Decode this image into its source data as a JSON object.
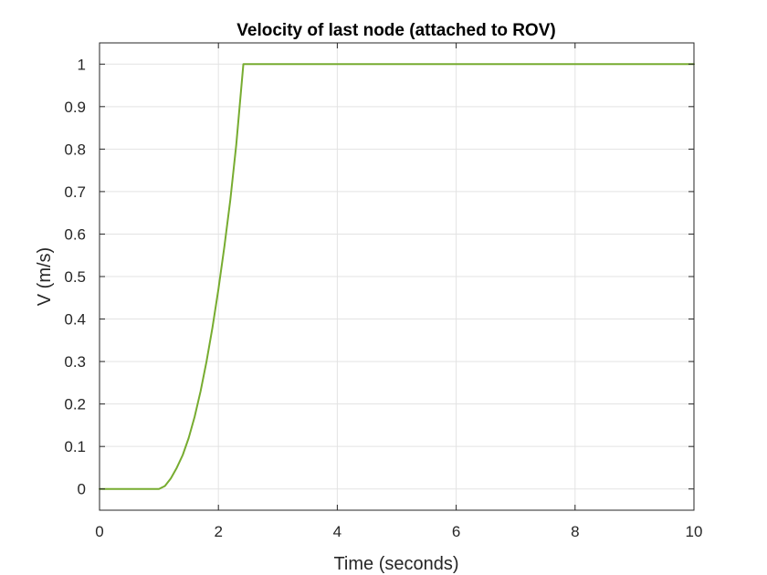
{
  "chart_data": {
    "type": "line",
    "title": "Velocity of last node (attached to ROV)",
    "xlabel": "Time (seconds)",
    "ylabel": "V (m/s)",
    "xlim": [
      0,
      10
    ],
    "ylim": [
      -0.05,
      1.05
    ],
    "xticks": [
      0,
      2,
      4,
      6,
      8,
      10
    ],
    "yticks": [
      0,
      0.1,
      0.2,
      0.3,
      0.4,
      0.5,
      0.6,
      0.7,
      0.8,
      0.9,
      1
    ],
    "xtick_labels": [
      "0",
      "2",
      "4",
      "6",
      "8",
      "10"
    ],
    "ytick_labels": [
      "0",
      "0.1",
      "0.2",
      "0.3",
      "0.4",
      "0.5",
      "0.6",
      "0.7",
      "0.8",
      "0.9",
      "1"
    ],
    "grid": true,
    "series": [
      {
        "color": "#77ac30",
        "x": [
          0,
          0.5,
          1.0,
          1.1,
          1.2,
          1.3,
          1.4,
          1.5,
          1.6,
          1.7,
          1.8,
          1.9,
          2.0,
          2.1,
          2.2,
          2.3,
          2.42,
          3,
          4,
          5,
          6,
          7,
          8,
          9,
          10
        ],
        "y": [
          0,
          0,
          0,
          0.007,
          0.025,
          0.05,
          0.08,
          0.12,
          0.17,
          0.23,
          0.3,
          0.38,
          0.47,
          0.57,
          0.68,
          0.81,
          1.0,
          1,
          1,
          1,
          1,
          1,
          1,
          1,
          1
        ]
      }
    ]
  }
}
